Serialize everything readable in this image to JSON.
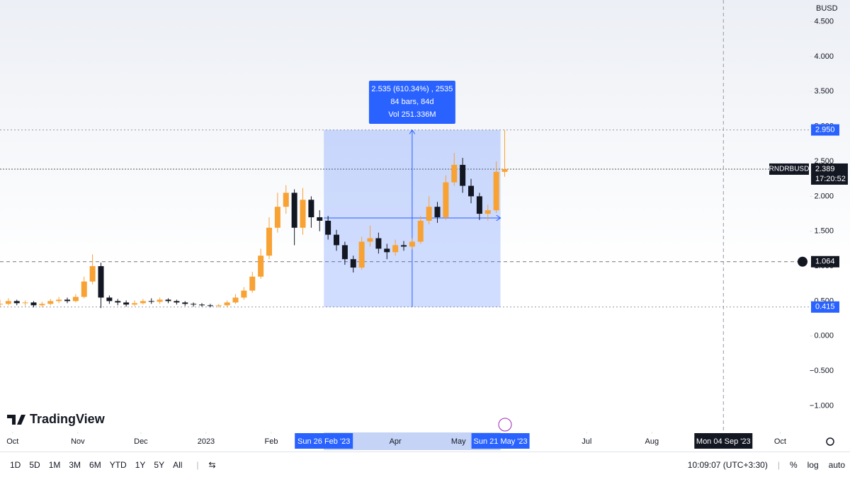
{
  "chart_data": {
    "type": "candlestick",
    "symbol": "RNDRBUSD",
    "currency": "BUSD",
    "up_color": "#f7a233",
    "down_color": "#131722",
    "x": [
      -6,
      -2,
      2,
      6,
      10,
      14,
      18,
      22,
      26,
      30,
      34,
      38,
      42,
      46,
      50,
      54,
      58,
      62,
      66,
      70,
      74,
      78,
      82,
      86,
      90,
      94,
      98,
      102,
      106,
      110,
      114,
      118,
      122,
      126,
      130,
      134,
      138,
      142,
      146,
      150,
      154,
      158,
      162,
      166,
      170,
      174,
      178,
      182,
      186,
      190,
      194,
      198,
      202,
      206,
      210,
      214,
      218,
      222,
      226,
      230,
      234
    ],
    "open": [
      0.45,
      0.46,
      0.5,
      0.47,
      0.48,
      0.44,
      0.46,
      0.5,
      0.52,
      0.5,
      0.56,
      0.78,
      1.0,
      0.55,
      0.5,
      0.48,
      0.45,
      0.47,
      0.5,
      0.49,
      0.52,
      0.5,
      0.48,
      0.46,
      0.45,
      0.44,
      0.43,
      0.44,
      0.48,
      0.55,
      0.65,
      0.85,
      1.15,
      1.55,
      1.85,
      2.05,
      1.55,
      1.95,
      1.7,
      1.65,
      1.45,
      1.3,
      1.1,
      0.98,
      1.35,
      1.4,
      1.25,
      1.2,
      1.3,
      1.28,
      1.35,
      1.65,
      1.85,
      1.7,
      2.2,
      2.45,
      2.15,
      2.0,
      1.75,
      1.8,
      2.35
    ],
    "high": [
      0.52,
      0.54,
      0.52,
      0.51,
      0.5,
      0.49,
      0.53,
      0.56,
      0.55,
      0.6,
      0.85,
      1.17,
      1.05,
      0.58,
      0.53,
      0.51,
      0.51,
      0.53,
      0.54,
      0.55,
      0.54,
      0.52,
      0.5,
      0.48,
      0.47,
      0.46,
      0.46,
      0.51,
      0.6,
      0.7,
      0.92,
      1.25,
      1.7,
      2.05,
      2.16,
      2.1,
      2.12,
      2.0,
      1.8,
      1.72,
      1.52,
      1.35,
      1.15,
      1.42,
      1.58,
      1.48,
      1.32,
      1.38,
      1.36,
      1.4,
      1.72,
      2.0,
      1.92,
      2.3,
      2.62,
      2.55,
      2.25,
      2.05,
      1.88,
      2.5,
      2.95
    ],
    "low": [
      0.42,
      0.44,
      0.44,
      0.43,
      0.41,
      0.41,
      0.44,
      0.47,
      0.47,
      0.48,
      0.54,
      0.74,
      0.4,
      0.46,
      0.44,
      0.42,
      0.43,
      0.45,
      0.46,
      0.46,
      0.47,
      0.45,
      0.43,
      0.42,
      0.42,
      0.41,
      0.41,
      0.42,
      0.46,
      0.52,
      0.62,
      0.82,
      1.1,
      1.48,
      1.75,
      1.3,
      1.45,
      1.55,
      1.5,
      1.38,
      1.22,
      1.02,
      0.91,
      0.95,
      1.28,
      1.18,
      1.1,
      1.15,
      1.22,
      1.24,
      1.32,
      1.6,
      1.62,
      1.66,
      2.15,
      2.05,
      1.9,
      1.66,
      1.65,
      1.76,
      2.28
    ],
    "close": [
      0.46,
      0.5,
      0.47,
      0.48,
      0.44,
      0.46,
      0.5,
      0.52,
      0.5,
      0.56,
      0.78,
      1.0,
      0.55,
      0.5,
      0.48,
      0.45,
      0.47,
      0.5,
      0.49,
      0.52,
      0.5,
      0.48,
      0.46,
      0.45,
      0.44,
      0.43,
      0.44,
      0.48,
      0.55,
      0.65,
      0.85,
      1.15,
      1.55,
      1.85,
      2.05,
      1.55,
      1.95,
      1.7,
      1.65,
      1.45,
      1.3,
      1.1,
      0.98,
      1.35,
      1.4,
      1.25,
      1.2,
      1.3,
      1.28,
      1.35,
      1.65,
      1.85,
      1.7,
      2.2,
      2.45,
      2.15,
      2.0,
      1.75,
      1.8,
      2.35,
      2.39
    ],
    "xlim": [
      -6,
      379
    ],
    "xticks": [
      {
        "value": 0,
        "label": "Oct"
      },
      {
        "value": 31,
        "label": "Nov"
      },
      {
        "value": 61,
        "label": "Dec"
      },
      {
        "value": 92,
        "label": "2023"
      },
      {
        "value": 123,
        "label": "Feb"
      },
      {
        "value": 182,
        "label": "Apr"
      },
      {
        "value": 212,
        "label": "May"
      },
      {
        "value": 273,
        "label": "Jul"
      },
      {
        "value": 304,
        "label": "Aug"
      },
      {
        "value": 365,
        "label": "Oct"
      }
    ],
    "ylim": [
      -1.37,
      4.81
    ],
    "yticks": [
      {
        "value": 4.5,
        "label": "4.500"
      },
      {
        "value": 4,
        "label": "4.000"
      },
      {
        "value": 3.5,
        "label": "3.500"
      },
      {
        "value": 3,
        "label": "3.000"
      },
      {
        "value": 2.5,
        "label": "2.500"
      },
      {
        "value": 2,
        "label": "2.000"
      },
      {
        "value": 1.5,
        "label": "1.500"
      },
      {
        "value": 1,
        "label": "1.000"
      },
      {
        "value": 0.5,
        "label": "0.500"
      },
      {
        "value": 0,
        "label": "0.000"
      },
      {
        "value": -0.5,
        "label": "−0.500"
      },
      {
        "value": -1,
        "label": "−1.000"
      }
    ],
    "last_price": {
      "value": 2.389,
      "label": "2.389"
    },
    "countdown": "17:20:52",
    "crosshair": {
      "x": 338,
      "date_label": "Mon 04 Sep '23",
      "price": {
        "value": 1.064,
        "label": "1.064"
      }
    },
    "measure": {
      "x_start": 148,
      "x_end": 232,
      "start_label": "Sun 26 Feb '23",
      "end_label": "Sun 21 May '23",
      "high": {
        "value": 2.95,
        "label": "2.950"
      },
      "low": {
        "value": 0.415,
        "label": "0.415"
      },
      "mid_level": 1.69,
      "lines": [
        "2.535 (610.34%) , 2535",
        "84 bars, 84d",
        "Vol 251.336M"
      ]
    }
  },
  "logo": "TradingView",
  "toolbar": {
    "ranges": [
      "1D",
      "5D",
      "1M",
      "3M",
      "6M",
      "YTD",
      "1Y",
      "5Y",
      "All"
    ],
    "time": "10:09:07 (UTC+3:30)",
    "percent": "%",
    "log": "log",
    "auto": "auto"
  }
}
